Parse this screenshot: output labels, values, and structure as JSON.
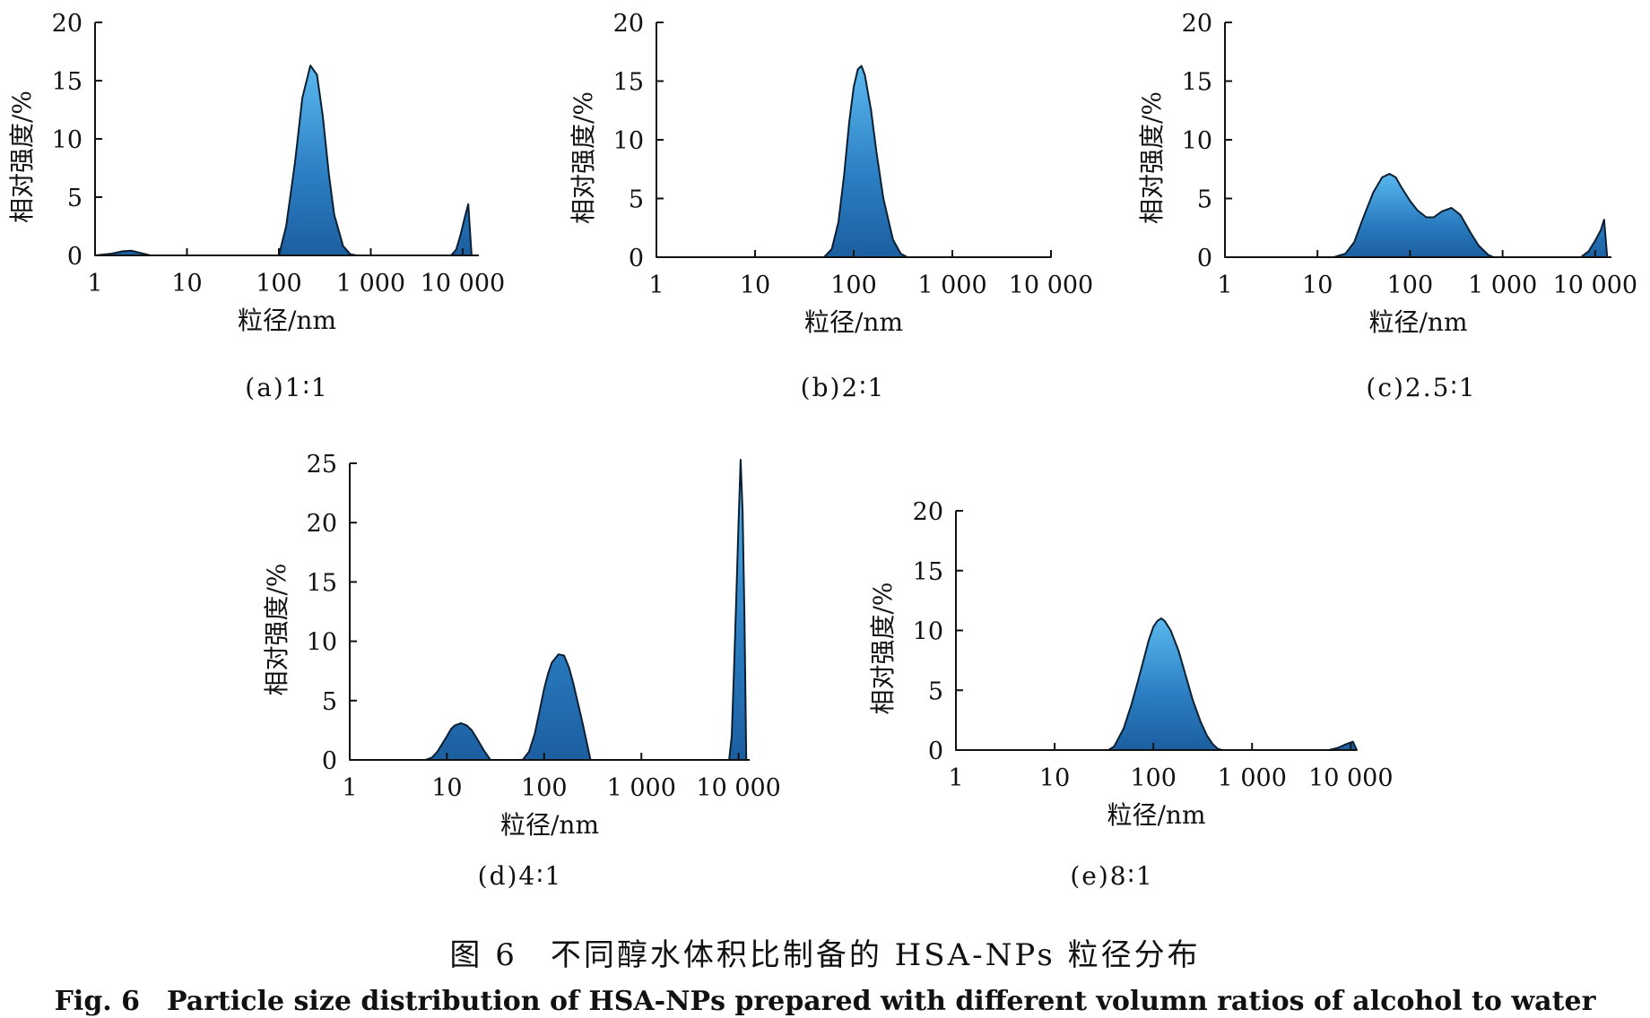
{
  "figure": {
    "caption_zh": "图 6　不同醇水体积比制备的 HSA-NPs 粒径分布",
    "caption_en": "Fig. 6　Particle size distribution of HSA-NPs prepared with different volumn ratios of alcohol to water"
  },
  "chart_data": [
    {
      "type": "area",
      "subcaption": "(a)1∶1",
      "xlabel": "粒径/nm",
      "ylabel": "相对强度/%",
      "xscale": "log",
      "xticks": [
        "1",
        "10",
        "100",
        "1 000",
        "10 000"
      ],
      "yticks": [
        "0",
        "5",
        "10",
        "15",
        "20"
      ],
      "xlim": [
        1,
        15000
      ],
      "ylim": [
        0,
        20
      ],
      "grid": false,
      "series": [
        {
          "x": [
            1,
            1.5,
            2,
            2.5,
            3,
            4,
            100,
            120,
            150,
            180,
            220,
            260,
            300,
            350,
            400,
            500,
            600,
            700,
            7500,
            8500,
            9500,
            10500,
            11500,
            12500
          ],
          "y": [
            0,
            0.15,
            0.35,
            0.4,
            0.25,
            0,
            0,
            2.5,
            8,
            13.5,
            16.3,
            15.5,
            12,
            7,
            3.5,
            0.8,
            0.1,
            0,
            0,
            0.5,
            1.8,
            3.2,
            4.4,
            0
          ]
        }
      ]
    },
    {
      "type": "area",
      "subcaption": "(b)2∶1",
      "xlabel": "粒径/nm",
      "ylabel": "相对强度/%",
      "xscale": "log",
      "xticks": [
        "1",
        "10",
        "100",
        "1 000",
        "10 000"
      ],
      "yticks": [
        "0",
        "5",
        "10",
        "15",
        "20"
      ],
      "xlim": [
        1,
        10000
      ],
      "ylim": [
        0,
        20
      ],
      "grid": false,
      "series": [
        {
          "x": [
            1,
            50,
            60,
            70,
            80,
            90,
            100,
            110,
            120,
            130,
            150,
            170,
            200,
            250,
            300,
            350,
            10000
          ],
          "y": [
            0,
            0,
            0.7,
            3,
            7,
            11.5,
            14.5,
            16,
            16.3,
            15.5,
            12.5,
            9,
            5,
            1.5,
            0.3,
            0,
            0
          ]
        }
      ]
    },
    {
      "type": "area",
      "subcaption": "(c)2.5∶1",
      "xlabel": "粒径/nm",
      "ylabel": "相对强度/%",
      "xscale": "log",
      "xticks": [
        "1",
        "10",
        "100",
        "1 000",
        "10 000"
      ],
      "yticks": [
        "0",
        "5",
        "10",
        "15",
        "20"
      ],
      "xlim": [
        1,
        15000
      ],
      "ylim": [
        0,
        20
      ],
      "grid": false,
      "series": [
        {
          "x": [
            1,
            15,
            20,
            25,
            30,
            40,
            50,
            60,
            70,
            80,
            100,
            120,
            150,
            180,
            220,
            280,
            350,
            450,
            550,
            700,
            800,
            7000,
            8500,
            10000,
            11500,
            12500,
            13500
          ],
          "y": [
            0,
            0,
            0.3,
            1.3,
            3,
            5.5,
            6.8,
            7.1,
            6.8,
            6,
            4.8,
            4,
            3.4,
            3.4,
            3.9,
            4.2,
            3.6,
            2.1,
            1,
            0.2,
            0,
            0,
            0.5,
            1.4,
            2.3,
            3.2,
            0
          ]
        }
      ]
    },
    {
      "type": "area",
      "subcaption": "(d)4∶1",
      "xlabel": "粒径/nm",
      "ylabel": "相对强度/%",
      "xscale": "log",
      "xticks": [
        "1",
        "10",
        "100",
        "1 000",
        "10 000"
      ],
      "yticks": [
        "0",
        "5",
        "10",
        "15",
        "20",
        "25"
      ],
      "xlim": [
        1,
        13000
      ],
      "ylim": [
        0,
        25
      ],
      "grid": false,
      "series": [
        {
          "x": [
            1,
            6,
            7,
            8,
            9,
            10,
            11,
            12,
            14,
            16,
            18,
            20,
            24,
            28,
            60,
            70,
            80,
            90,
            100,
            110,
            120,
            140,
            160,
            180,
            200,
            250,
            300,
            8000,
            8500,
            9000,
            9500,
            10000,
            10500,
            11000,
            11500,
            12000
          ],
          "y": [
            0,
            0,
            0.2,
            0.7,
            1.4,
            2,
            2.6,
            2.9,
            3.1,
            2.9,
            2.5,
            1.9,
            0.8,
            0,
            0,
            0.7,
            2.2,
            4.2,
            6,
            7.3,
            8.2,
            8.9,
            8.8,
            7.8,
            6.4,
            3,
            0,
            0,
            2,
            8,
            14,
            20,
            25.3,
            21,
            12,
            0
          ]
        }
      ]
    },
    {
      "type": "area",
      "subcaption": "(e)8∶1",
      "xlabel": "粒径/nm",
      "ylabel": "相对强度/%",
      "xscale": "log",
      "xticks": [
        "1",
        "10",
        "100",
        "1 000",
        "10 000"
      ],
      "yticks": [
        "0",
        "5",
        "10",
        "15",
        "20"
      ],
      "xlim": [
        1,
        11500
      ],
      "ylim": [
        0,
        20
      ],
      "grid": false,
      "series": [
        {
          "x": [
            1,
            35,
            40,
            50,
            60,
            70,
            80,
            90,
            100,
            110,
            120,
            130,
            150,
            180,
            210,
            250,
            300,
            350,
            400,
            450,
            500,
            6000,
            7500,
            9000,
            10500,
            11500
          ],
          "y": [
            0,
            0,
            0.3,
            1.8,
            3.8,
            5.8,
            7.6,
            9.2,
            10.3,
            10.8,
            11,
            10.8,
            10,
            8.3,
            6.4,
            4.2,
            2.4,
            1.2,
            0.5,
            0.1,
            0,
            0,
            0.2,
            0.5,
            0.7,
            0
          ]
        }
      ]
    }
  ]
}
